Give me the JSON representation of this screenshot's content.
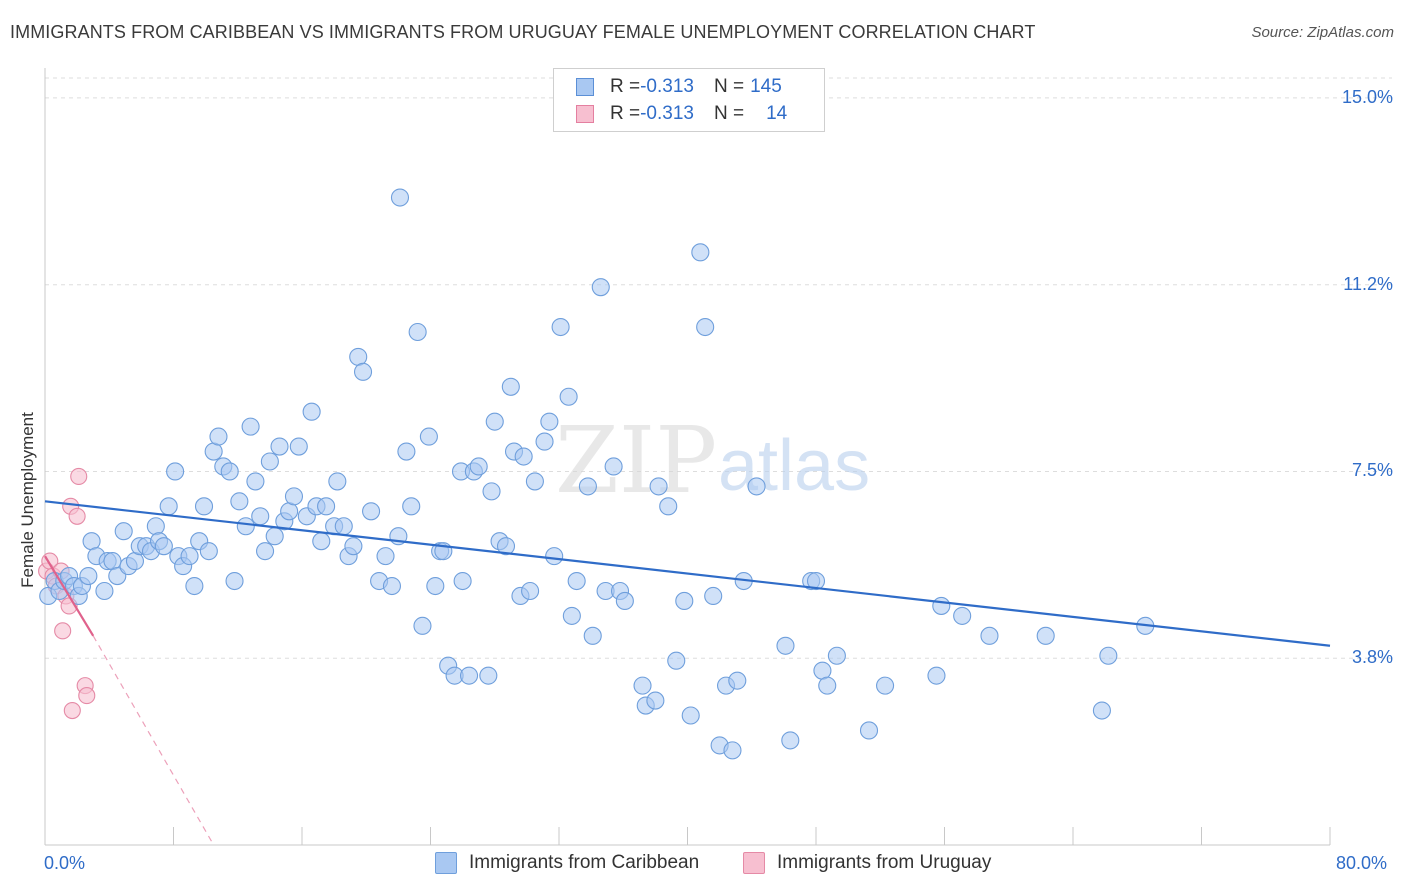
{
  "title": "IMMIGRANTS FROM CARIBBEAN VS IMMIGRANTS FROM URUGUAY FEMALE UNEMPLOYMENT CORRELATION CHART",
  "source": "Source: ZipAtlas.com",
  "watermark": {
    "zip": "ZIP",
    "atlas": "atlas"
  },
  "legend": {
    "rows": [
      {
        "r_label": "R = ",
        "r_value": "-0.313",
        "n_label": "N = ",
        "n_value": "145",
        "color": "#a9c8f2",
        "border": "#5b8fd6"
      },
      {
        "r_label": "R = ",
        "r_value": "-0.313",
        "n_label": "N = ",
        "n_value": "14",
        "color": "#f7bfd0",
        "border": "#e47fa0"
      }
    ]
  },
  "colors": {
    "blue_fill": "#a9c8f2",
    "blue_stroke": "#6f9fdc",
    "blue_line": "#2f6cc8",
    "pink_fill": "#f7bfd0",
    "pink_stroke": "#e58aa6",
    "pink_line": "#e0628c",
    "tick_text": "#2f6cc8",
    "grid": "#dddddd"
  },
  "chart_data": {
    "type": "scatter",
    "title": "IMMIGRANTS FROM CARIBBEAN VS IMMIGRANTS FROM URUGUAY FEMALE UNEMPLOYMENT CORRELATION CHART",
    "xlabel": "",
    "ylabel": "Female Unemployment",
    "x_tick_labels": [
      "0.0%",
      "80.0%"
    ],
    "y_tick_labels": [
      "15.0%",
      "11.2%",
      "7.5%",
      "3.8%"
    ],
    "y_ticks": [
      15.0,
      11.25,
      7.5,
      3.75
    ],
    "xlim": [
      0,
      80
    ],
    "ylim": [
      0,
      15.4
    ],
    "grid": true,
    "legend_placement": "top-center",
    "series": [
      {
        "name": "Immigrants from Caribbean",
        "R": -0.313,
        "N": 145,
        "trend": {
          "x": [
            0,
            80
          ],
          "y": [
            6.9,
            4.0
          ]
        },
        "points": [
          [
            0.2,
            5.0
          ],
          [
            0.6,
            5.3
          ],
          [
            0.9,
            5.1
          ],
          [
            1.2,
            5.3
          ],
          [
            1.5,
            5.4
          ],
          [
            1.8,
            5.2
          ],
          [
            2.1,
            5.0
          ],
          [
            2.3,
            5.2
          ],
          [
            2.7,
            5.4
          ],
          [
            2.9,
            6.1
          ],
          [
            3.2,
            5.8
          ],
          [
            3.7,
            5.1
          ],
          [
            3.9,
            5.7
          ],
          [
            4.2,
            5.7
          ],
          [
            4.5,
            5.4
          ],
          [
            4.9,
            6.3
          ],
          [
            5.2,
            5.6
          ],
          [
            5.6,
            5.7
          ],
          [
            5.9,
            6.0
          ],
          [
            6.3,
            6.0
          ],
          [
            6.6,
            5.9
          ],
          [
            6.9,
            6.4
          ],
          [
            7.1,
            6.1
          ],
          [
            7.4,
            6.0
          ],
          [
            7.7,
            6.8
          ],
          [
            8.1,
            7.5
          ],
          [
            8.3,
            5.8
          ],
          [
            8.6,
            5.6
          ],
          [
            9.0,
            5.8
          ],
          [
            9.3,
            5.2
          ],
          [
            9.6,
            6.1
          ],
          [
            9.9,
            6.8
          ],
          [
            10.2,
            5.9
          ],
          [
            10.5,
            7.9
          ],
          [
            10.8,
            8.2
          ],
          [
            11.1,
            7.6
          ],
          [
            11.5,
            7.5
          ],
          [
            11.8,
            5.3
          ],
          [
            12.1,
            6.9
          ],
          [
            12.5,
            6.4
          ],
          [
            12.8,
            8.4
          ],
          [
            13.1,
            7.3
          ],
          [
            13.4,
            6.6
          ],
          [
            13.7,
            5.9
          ],
          [
            14.0,
            7.7
          ],
          [
            14.3,
            6.2
          ],
          [
            14.6,
            8.0
          ],
          [
            14.9,
            6.5
          ],
          [
            15.2,
            6.7
          ],
          [
            15.5,
            7.0
          ],
          [
            15.8,
            8.0
          ],
          [
            16.3,
            6.6
          ],
          [
            16.6,
            8.7
          ],
          [
            16.9,
            6.8
          ],
          [
            17.2,
            6.1
          ],
          [
            17.5,
            6.8
          ],
          [
            18.0,
            6.4
          ],
          [
            18.2,
            7.3
          ],
          [
            18.6,
            6.4
          ],
          [
            18.9,
            5.8
          ],
          [
            19.2,
            6.0
          ],
          [
            19.5,
            9.8
          ],
          [
            19.8,
            9.5
          ],
          [
            20.3,
            6.7
          ],
          [
            20.8,
            5.3
          ],
          [
            21.2,
            5.8
          ],
          [
            21.6,
            5.2
          ],
          [
            22.0,
            6.2
          ],
          [
            22.1,
            13.0
          ],
          [
            22.5,
            7.9
          ],
          [
            22.8,
            6.8
          ],
          [
            23.2,
            10.3
          ],
          [
            23.5,
            4.4
          ],
          [
            23.9,
            8.2
          ],
          [
            24.3,
            5.2
          ],
          [
            24.6,
            5.9
          ],
          [
            24.8,
            5.9
          ],
          [
            25.1,
            3.6
          ],
          [
            25.5,
            3.4
          ],
          [
            25.9,
            7.5
          ],
          [
            26.0,
            5.3
          ],
          [
            26.4,
            3.4
          ],
          [
            26.7,
            7.5
          ],
          [
            27.0,
            7.6
          ],
          [
            27.6,
            3.4
          ],
          [
            27.8,
            7.1
          ],
          [
            28.0,
            8.5
          ],
          [
            28.3,
            6.1
          ],
          [
            28.7,
            6.0
          ],
          [
            29.0,
            9.2
          ],
          [
            29.2,
            7.9
          ],
          [
            29.6,
            5.0
          ],
          [
            29.8,
            7.8
          ],
          [
            30.2,
            5.1
          ],
          [
            30.5,
            7.3
          ],
          [
            31.1,
            8.1
          ],
          [
            31.4,
            8.5
          ],
          [
            31.7,
            5.8
          ],
          [
            32.1,
            10.4
          ],
          [
            32.6,
            9.0
          ],
          [
            32.8,
            4.6
          ],
          [
            33.1,
            5.3
          ],
          [
            33.8,
            7.2
          ],
          [
            34.1,
            4.2
          ],
          [
            34.6,
            11.2
          ],
          [
            34.9,
            5.1
          ],
          [
            35.4,
            7.6
          ],
          [
            35.8,
            5.1
          ],
          [
            36.1,
            4.9
          ],
          [
            37.2,
            3.2
          ],
          [
            37.4,
            2.8
          ],
          [
            38.0,
            2.9
          ],
          [
            38.2,
            7.2
          ],
          [
            38.8,
            6.8
          ],
          [
            39.3,
            3.7
          ],
          [
            39.8,
            4.9
          ],
          [
            40.2,
            2.6
          ],
          [
            40.8,
            11.9
          ],
          [
            41.1,
            10.4
          ],
          [
            41.6,
            5.0
          ],
          [
            42.0,
            2.0
          ],
          [
            42.4,
            3.2
          ],
          [
            42.8,
            1.9
          ],
          [
            43.1,
            3.3
          ],
          [
            43.5,
            5.3
          ],
          [
            44.3,
            7.2
          ],
          [
            46.1,
            4.0
          ],
          [
            46.4,
            2.1
          ],
          [
            47.7,
            5.3
          ],
          [
            48.0,
            5.3
          ],
          [
            48.4,
            3.5
          ],
          [
            48.7,
            3.2
          ],
          [
            49.3,
            3.8
          ],
          [
            51.3,
            2.3
          ],
          [
            52.3,
            3.2
          ],
          [
            55.5,
            3.4
          ],
          [
            55.8,
            4.8
          ],
          [
            57.1,
            4.6
          ],
          [
            58.8,
            4.2
          ],
          [
            62.3,
            4.2
          ],
          [
            65.8,
            2.7
          ],
          [
            66.2,
            3.8
          ],
          [
            68.5,
            4.4
          ]
        ]
      },
      {
        "name": "Immigrants from Uruguay",
        "R": -0.313,
        "N": 14,
        "trend": {
          "x": [
            0,
            3.0
          ],
          "y": [
            5.8,
            4.2
          ]
        },
        "trend_ext": {
          "x": [
            3.0,
            10.5
          ],
          "y": [
            4.2,
            0.0
          ]
        },
        "points": [
          [
            0.1,
            5.5
          ],
          [
            0.3,
            5.7
          ],
          [
            0.5,
            5.4
          ],
          [
            0.7,
            5.2
          ],
          [
            1.0,
            5.5
          ],
          [
            1.3,
            5.0
          ],
          [
            1.5,
            4.8
          ],
          [
            1.6,
            6.8
          ],
          [
            2.0,
            6.6
          ],
          [
            2.1,
            7.4
          ],
          [
            1.1,
            4.3
          ],
          [
            2.5,
            3.2
          ],
          [
            2.6,
            3.0
          ],
          [
            1.7,
            2.7
          ]
        ]
      }
    ]
  },
  "bottom_legend": {
    "items": [
      {
        "label": "Immigrants from Caribbean"
      },
      {
        "label": "Immigrants from Uruguay"
      }
    ]
  }
}
